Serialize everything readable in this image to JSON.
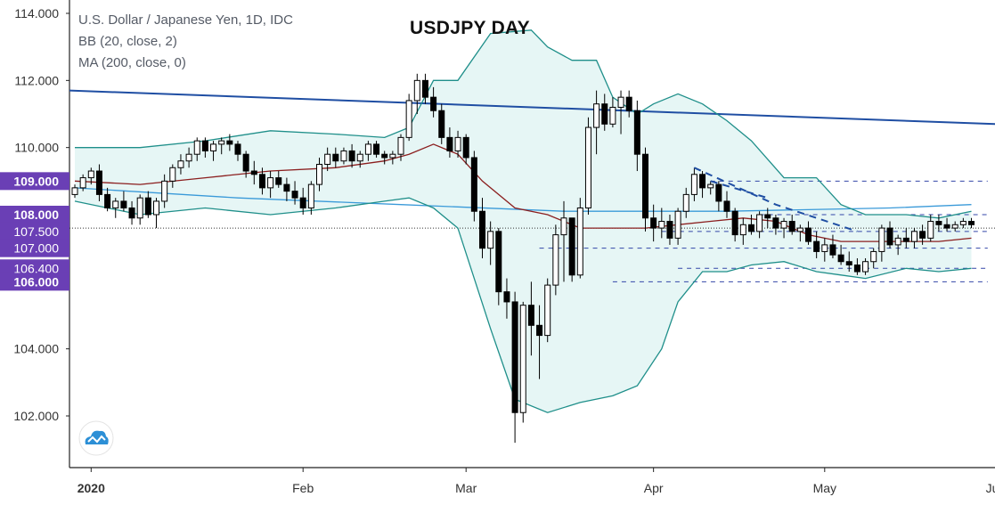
{
  "legend": {
    "symbol": "U.S. Dollar / Japanese Yen, 1D, IDC",
    "bb": "BB (20, close, 2)",
    "ma": "MA (200, close, 0)"
  },
  "colors": {
    "bb_fill": "#e6f6f5",
    "bb_band": "#1f8f8a",
    "bb_basis": "#8b1e1e",
    "ma200": "#3a9ad9",
    "trendline": "#1f4ea3",
    "level_line": "#3346a8",
    "up": "#ffffff",
    "down": "#000000",
    "label_bg": "#6a3fb5",
    "logo": "#2c8fd6"
  },
  "logo": {
    "icon": "cloud-chart-icon"
  },
  "chart_data": {
    "type": "candlestick",
    "title": "USDJPY DAY",
    "ylim": [
      100.8,
      114.4
    ],
    "y_ticks": [
      "114.000",
      "112.000",
      "110.000",
      "108.000",
      "107.000",
      "106.000",
      "104.000",
      "102.000"
    ],
    "x_labels": [
      "2020",
      "Feb",
      "Mar",
      "Apr",
      "May",
      "Jun"
    ],
    "x_label_sessions": [
      2,
      28,
      48,
      71,
      92,
      113
    ],
    "price_labels": [
      "109.000",
      "108.000",
      "107.500",
      "107.000",
      "106.400",
      "106.000"
    ],
    "highlighted_labels": [
      "109.000",
      "108.000",
      "106.000"
    ],
    "current_price": 107.6,
    "grid": false,
    "candles": [
      [
        108.6,
        108.9,
        108.5,
        108.8
      ],
      [
        108.8,
        109.2,
        108.7,
        109.1
      ],
      [
        109.1,
        109.4,
        108.9,
        109.3
      ],
      [
        109.3,
        109.5,
        108.4,
        108.6
      ],
      [
        108.6,
        108.8,
        108.1,
        108.2
      ],
      [
        108.2,
        108.5,
        107.9,
        108.4
      ],
      [
        108.4,
        108.7,
        108.1,
        108.2
      ],
      [
        108.2,
        108.4,
        107.7,
        107.9
      ],
      [
        107.9,
        108.6,
        107.7,
        108.5
      ],
      [
        108.5,
        108.7,
        107.9,
        108.0
      ],
      [
        108.0,
        108.5,
        107.6,
        108.4
      ],
      [
        108.4,
        109.2,
        108.2,
        109.0
      ],
      [
        109.0,
        109.5,
        108.8,
        109.4
      ],
      [
        109.4,
        109.8,
        109.2,
        109.6
      ],
      [
        109.6,
        110.0,
        109.4,
        109.8
      ],
      [
        109.8,
        110.3,
        109.6,
        110.2
      ],
      [
        110.2,
        110.3,
        109.7,
        109.9
      ],
      [
        109.9,
        110.2,
        109.6,
        110.1
      ],
      [
        110.1,
        110.3,
        109.8,
        110.2
      ],
      [
        110.2,
        110.4,
        109.9,
        110.1
      ],
      [
        110.1,
        110.2,
        109.6,
        109.8
      ],
      [
        109.8,
        109.9,
        109.1,
        109.3
      ],
      [
        109.3,
        109.6,
        108.9,
        109.2
      ],
      [
        109.2,
        109.4,
        108.6,
        108.8
      ],
      [
        108.8,
        109.3,
        108.5,
        109.1
      ],
      [
        109.1,
        109.3,
        108.8,
        108.9
      ],
      [
        108.9,
        109.1,
        108.4,
        108.7
      ],
      [
        108.7,
        109.0,
        108.3,
        108.5
      ],
      [
        108.5,
        108.8,
        108.0,
        108.2
      ],
      [
        108.2,
        109.0,
        108.0,
        108.9
      ],
      [
        108.9,
        109.7,
        108.7,
        109.5
      ],
      [
        109.5,
        110.0,
        109.3,
        109.8
      ],
      [
        109.8,
        110.0,
        109.4,
        109.6
      ],
      [
        109.6,
        110.0,
        109.5,
        109.9
      ],
      [
        109.9,
        110.1,
        109.4,
        109.6
      ],
      [
        109.6,
        109.9,
        109.4,
        109.8
      ],
      [
        109.8,
        110.2,
        109.6,
        110.1
      ],
      [
        110.1,
        110.2,
        109.7,
        109.8
      ],
      [
        109.8,
        109.9,
        109.5,
        109.7
      ],
      [
        109.7,
        109.9,
        109.5,
        109.8
      ],
      [
        109.8,
        110.4,
        109.6,
        110.3
      ],
      [
        110.3,
        111.6,
        110.2,
        111.4
      ],
      [
        111.4,
        112.2,
        111.0,
        112.0
      ],
      [
        112.0,
        112.2,
        111.3,
        111.5
      ],
      [
        111.5,
        111.8,
        110.9,
        111.1
      ],
      [
        111.1,
        111.3,
        110.1,
        110.3
      ],
      [
        110.3,
        110.6,
        109.7,
        109.9
      ],
      [
        109.9,
        110.5,
        109.7,
        110.3
      ],
      [
        110.3,
        110.4,
        109.5,
        109.7
      ],
      [
        109.7,
        109.9,
        107.8,
        108.1
      ],
      [
        108.1,
        108.5,
        106.7,
        107.0
      ],
      [
        107.0,
        107.8,
        106.5,
        107.5
      ],
      [
        107.5,
        107.6,
        105.3,
        105.7
      ],
      [
        105.7,
        106.1,
        104.9,
        105.4
      ],
      [
        105.4,
        105.7,
        101.2,
        102.1
      ],
      [
        102.1,
        105.4,
        101.8,
        105.3
      ],
      [
        105.3,
        106.0,
        103.8,
        104.7
      ],
      [
        104.7,
        105.3,
        103.1,
        104.4
      ],
      [
        104.4,
        106.1,
        104.2,
        105.9
      ],
      [
        105.9,
        107.7,
        105.6,
        107.4
      ],
      [
        107.4,
        108.4,
        106.0,
        107.9
      ],
      [
        107.9,
        107.9,
        106.0,
        106.2
      ],
      [
        106.2,
        108.5,
        106.1,
        108.2
      ],
      [
        108.2,
        110.9,
        108.0,
        110.6
      ],
      [
        110.6,
        111.7,
        109.8,
        111.3
      ],
      [
        111.3,
        111.6,
        110.5,
        110.7
      ],
      [
        110.7,
        111.5,
        110.6,
        111.2
      ],
      [
        111.2,
        111.7,
        110.4,
        111.5
      ],
      [
        111.5,
        111.7,
        110.9,
        111.1
      ],
      [
        111.1,
        111.4,
        109.3,
        109.8
      ],
      [
        109.8,
        110.0,
        107.5,
        107.9
      ],
      [
        107.9,
        108.3,
        107.2,
        107.6
      ],
      [
        107.6,
        108.2,
        107.3,
        107.8
      ],
      [
        107.8,
        108.0,
        107.1,
        107.3
      ],
      [
        107.3,
        108.2,
        107.1,
        108.1
      ],
      [
        108.1,
        108.8,
        107.9,
        108.6
      ],
      [
        108.6,
        109.4,
        108.4,
        109.2
      ],
      [
        109.2,
        109.3,
        108.5,
        108.8
      ],
      [
        108.8,
        109.0,
        108.6,
        108.9
      ],
      [
        108.9,
        109.0,
        108.1,
        108.4
      ],
      [
        108.4,
        108.7,
        107.9,
        108.1
      ],
      [
        108.1,
        108.2,
        107.2,
        107.4
      ],
      [
        107.4,
        107.9,
        107.1,
        107.7
      ],
      [
        107.7,
        108.0,
        107.4,
        107.5
      ],
      [
        107.5,
        108.1,
        107.3,
        108.0
      ],
      [
        108.0,
        108.2,
        107.6,
        107.9
      ],
      [
        107.9,
        108.0,
        107.4,
        107.6
      ],
      [
        107.6,
        107.9,
        107.3,
        107.8
      ],
      [
        107.8,
        108.0,
        107.4,
        107.5
      ],
      [
        107.5,
        107.7,
        107.2,
        107.6
      ],
      [
        107.6,
        107.8,
        107.1,
        107.2
      ],
      [
        107.2,
        107.5,
        106.7,
        106.9
      ],
      [
        106.9,
        107.3,
        106.6,
        107.1
      ],
      [
        107.1,
        107.4,
        106.7,
        106.8
      ],
      [
        106.8,
        107.1,
        106.5,
        106.6
      ],
      [
        106.6,
        106.9,
        106.3,
        106.5
      ],
      [
        106.5,
        106.7,
        106.2,
        106.3
      ],
      [
        106.3,
        106.7,
        106.2,
        106.6
      ],
      [
        106.6,
        107.0,
        106.4,
        106.9
      ],
      [
        106.9,
        107.7,
        106.6,
        107.6
      ],
      [
        107.6,
        107.8,
        107.0,
        107.1
      ],
      [
        107.1,
        107.4,
        106.8,
        107.3
      ],
      [
        107.3,
        107.6,
        107.0,
        107.2
      ],
      [
        107.2,
        107.6,
        107.0,
        107.5
      ],
      [
        107.5,
        107.7,
        107.1,
        107.3
      ],
      [
        107.3,
        108.0,
        107.2,
        107.8
      ],
      [
        107.8,
        108.0,
        107.5,
        107.7
      ],
      [
        107.7,
        107.9,
        107.5,
        107.6
      ],
      [
        107.6,
        107.8,
        107.5,
        107.7
      ],
      [
        107.7,
        107.9,
        107.6,
        107.8
      ],
      [
        107.8,
        107.9,
        107.6,
        107.7
      ]
    ],
    "bb_upper_points": [
      [
        0,
        110.0
      ],
      [
        8,
        110.0
      ],
      [
        16,
        110.2
      ],
      [
        24,
        110.5
      ],
      [
        32,
        110.4
      ],
      [
        38,
        110.3
      ],
      [
        41,
        110.6
      ],
      [
        44,
        112.0
      ],
      [
        47,
        112.0
      ],
      [
        51,
        113.4
      ],
      [
        56,
        113.5
      ],
      [
        58,
        113.0
      ],
      [
        61,
        112.6
      ],
      [
        64,
        112.6
      ],
      [
        66,
        111.5
      ],
      [
        69,
        111.0
      ],
      [
        71,
        111.3
      ],
      [
        74,
        111.6
      ],
      [
        77,
        111.3
      ],
      [
        80,
        110.8
      ],
      [
        83,
        110.2
      ],
      [
        87,
        109.1
      ],
      [
        91,
        109.1
      ],
      [
        94,
        108.3
      ],
      [
        97,
        108.0
      ],
      [
        102,
        108.0
      ],
      [
        106,
        107.9
      ],
      [
        110,
        108.1
      ]
    ],
    "bb_lower_points": [
      [
        0,
        108.4
      ],
      [
        8,
        108.0
      ],
      [
        16,
        108.2
      ],
      [
        24,
        108.0
      ],
      [
        32,
        108.2
      ],
      [
        38,
        108.4
      ],
      [
        41,
        108.5
      ],
      [
        44,
        108.2
      ],
      [
        47,
        107.6
      ],
      [
        51,
        104.6
      ],
      [
        54,
        102.5
      ],
      [
        58,
        102.1
      ],
      [
        62,
        102.4
      ],
      [
        66,
        102.6
      ],
      [
        69,
        102.9
      ],
      [
        72,
        104.0
      ],
      [
        74,
        105.4
      ],
      [
        77,
        106.3
      ],
      [
        80,
        106.3
      ],
      [
        83,
        106.5
      ],
      [
        87,
        106.6
      ],
      [
        91,
        106.3
      ],
      [
        94,
        106.2
      ],
      [
        97,
        106.1
      ],
      [
        102,
        106.4
      ],
      [
        106,
        106.3
      ],
      [
        110,
        106.4
      ]
    ],
    "bb_basis_points": [
      [
        0,
        109.0
      ],
      [
        8,
        108.9
      ],
      [
        16,
        109.1
      ],
      [
        24,
        109.3
      ],
      [
        32,
        109.4
      ],
      [
        38,
        109.6
      ],
      [
        41,
        109.8
      ],
      [
        44,
        110.1
      ],
      [
        47,
        109.8
      ],
      [
        50,
        109.0
      ],
      [
        54,
        108.2
      ],
      [
        58,
        108.0
      ],
      [
        62,
        107.6
      ],
      [
        66,
        107.6
      ],
      [
        70,
        107.6
      ],
      [
        74,
        107.7
      ],
      [
        78,
        107.8
      ],
      [
        82,
        107.9
      ],
      [
        86,
        107.8
      ],
      [
        90,
        107.4
      ],
      [
        94,
        107.2
      ],
      [
        98,
        107.2
      ],
      [
        102,
        107.2
      ],
      [
        106,
        107.2
      ],
      [
        110,
        107.3
      ]
    ],
    "ma200_points": [
      [
        0,
        108.8
      ],
      [
        20,
        108.5
      ],
      [
        40,
        108.3
      ],
      [
        60,
        108.1
      ],
      [
        80,
        108.1
      ],
      [
        100,
        108.2
      ],
      [
        110,
        108.3
      ]
    ],
    "trendline": {
      "from": [
        -2,
        111.7
      ],
      "to": [
        113,
        110.7
      ]
    },
    "dashed_trend_segments": [
      [
        [
          76,
          109.4
        ],
        [
          86,
          108.3
        ],
        [
          96,
          107.5
        ]
      ],
      [
        [
          78,
          109.0
        ],
        [
          85,
          108.5
        ]
      ]
    ],
    "support_levels": [
      {
        "price": 109.0,
        "from": 78,
        "to": 112
      },
      {
        "price": 108.0,
        "from": 84,
        "to": 112
      },
      {
        "price": 107.5,
        "from": 72,
        "to": 112
      },
      {
        "price": 107.0,
        "from": 57,
        "to": 112
      },
      {
        "price": 106.4,
        "from": 74,
        "to": 112
      },
      {
        "price": 106.0,
        "from": 66,
        "to": 112
      }
    ]
  }
}
